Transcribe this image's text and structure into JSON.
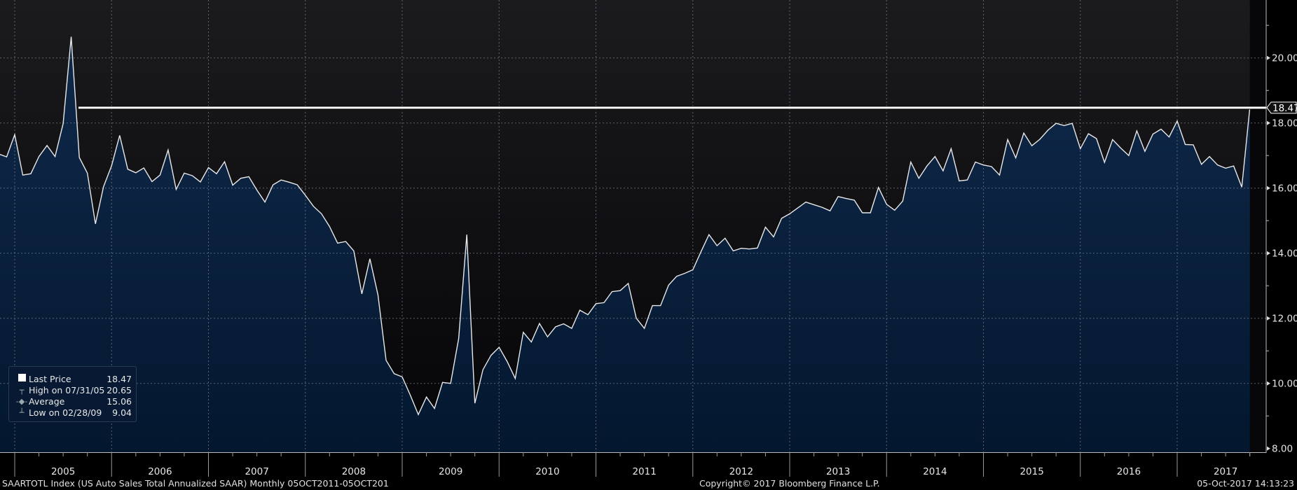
{
  "chart_data": {
    "type": "area",
    "title": "",
    "xlabel": "",
    "ylabel": "",
    "ylim": [
      8,
      21
    ],
    "yticks": [
      "8.00",
      "10.00",
      "12.00",
      "14.00",
      "16.00",
      "18.00",
      "20.00"
    ],
    "ytick_values": [
      8,
      10,
      12,
      14,
      16,
      18,
      20
    ],
    "xticks": [
      "2005",
      "2006",
      "2007",
      "2008",
      "2009",
      "2010",
      "2011",
      "2012",
      "2013",
      "2014",
      "2015",
      "2016",
      "2017"
    ],
    "x_start": "2004-10",
    "grid": true,
    "legend_placement": "bottom-left",
    "last_price_label": "18.47",
    "last_price": 18.47,
    "colors": {
      "line": "#e8e8e8",
      "area_top": "#10294a",
      "area_bottom": "#03172f",
      "bg_top": "#1b1b1e",
      "bg_bottom": "#050508",
      "last_line": "#ffffff"
    },
    "series": [
      {
        "values": [
          17.05,
          16.96,
          17.64,
          16.4,
          16.44,
          16.97,
          17.31,
          16.97,
          17.98,
          20.65,
          16.94,
          16.46,
          14.9,
          16.04,
          16.69,
          17.62,
          16.58,
          16.47,
          16.62,
          16.2,
          16.4,
          17.17,
          15.96,
          16.46,
          16.38,
          16.19,
          16.63,
          16.44,
          16.81,
          16.09,
          16.3,
          16.35,
          15.94,
          15.57,
          16.1,
          16.25,
          16.18,
          16.1,
          15.78,
          15.44,
          15.21,
          14.82,
          14.31,
          14.36,
          14.07,
          12.75,
          13.83,
          12.72,
          10.71,
          10.3,
          10.2,
          9.64,
          9.04,
          9.58,
          9.23,
          10.03,
          10.0,
          11.38,
          14.57,
          9.39,
          10.42,
          10.86,
          11.11,
          10.67,
          10.15,
          11.57,
          11.27,
          11.84,
          11.43,
          11.74,
          11.83,
          11.69,
          12.25,
          12.11,
          12.45,
          12.48,
          12.82,
          12.85,
          13.07,
          12.0,
          11.69,
          12.39,
          12.39,
          13.02,
          13.29,
          13.38,
          13.49,
          14.04,
          14.57,
          14.23,
          14.46,
          14.07,
          14.15,
          14.13,
          14.16,
          14.8,
          14.5,
          15.07,
          15.21,
          15.39,
          15.57,
          15.49,
          15.41,
          15.3,
          15.74,
          15.68,
          15.63,
          15.24,
          15.24,
          16.02,
          15.5,
          15.32,
          15.6,
          16.8,
          16.3,
          16.68,
          16.97,
          16.53,
          17.21,
          16.22,
          16.25,
          16.8,
          16.71,
          16.66,
          16.4,
          17.49,
          16.93,
          17.69,
          17.3,
          17.5,
          17.78,
          17.99,
          17.92,
          17.99,
          17.21,
          17.67,
          17.52,
          16.79,
          17.49,
          17.23,
          17.0,
          17.76,
          17.13,
          17.66,
          17.81,
          17.57,
          18.06,
          17.34,
          17.33,
          16.73,
          16.97,
          16.71,
          16.61,
          16.68,
          16.03,
          18.47
        ]
      }
    ]
  },
  "legend": {
    "items": [
      {
        "icon": "square-icon",
        "label": "Last Price",
        "value": "18.47"
      },
      {
        "icon": "high-marker-icon",
        "label": "High on 07/31/05",
        "value": "20.65"
      },
      {
        "icon": "average-marker-icon",
        "label": "Average",
        "value": "15.06"
      },
      {
        "icon": "low-marker-icon",
        "label": "Low on 02/28/09",
        "value": "9.04"
      }
    ]
  },
  "footer": {
    "description": "SAARTOTL Index (US Auto Sales Total Annualized SAAR)  Monthly 05OCT2011-05OCT201",
    "copyright": "Copyright© 2017 Bloomberg Finance L.P.",
    "timestamp": "05-Oct-2017  14:13:23"
  }
}
